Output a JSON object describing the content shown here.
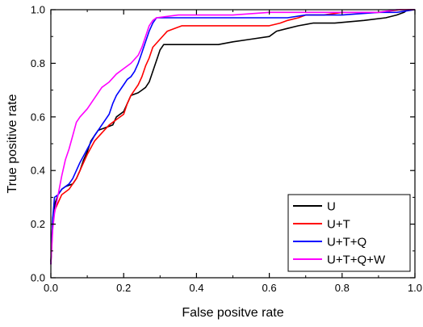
{
  "chart_data": {
    "type": "line",
    "title": "",
    "xlabel": "False positve rate",
    "ylabel": "True positive rate",
    "xlim": [
      0.0,
      1.0
    ],
    "ylim": [
      0.0,
      1.0
    ],
    "xticks": [
      "0.0",
      "0.2",
      "0.4",
      "0.6",
      "0.8",
      "1.0"
    ],
    "yticks": [
      "0.0",
      "0.2",
      "0.4",
      "0.6",
      "0.8",
      "1.0"
    ],
    "grid": false,
    "legend_position": "bottom-right",
    "series": [
      {
        "name": "U",
        "color": "#000000",
        "points": [
          [
            0.0,
            0.06
          ],
          [
            0.005,
            0.22
          ],
          [
            0.012,
            0.28
          ],
          [
            0.02,
            0.31
          ],
          [
            0.03,
            0.33
          ],
          [
            0.04,
            0.34
          ],
          [
            0.06,
            0.35
          ],
          [
            0.07,
            0.37
          ],
          [
            0.08,
            0.4
          ],
          [
            0.09,
            0.44
          ],
          [
            0.1,
            0.47
          ],
          [
            0.11,
            0.51
          ],
          [
            0.12,
            0.53
          ],
          [
            0.13,
            0.55
          ],
          [
            0.15,
            0.56
          ],
          [
            0.17,
            0.57
          ],
          [
            0.18,
            0.6
          ],
          [
            0.2,
            0.62
          ],
          [
            0.21,
            0.65
          ],
          [
            0.22,
            0.68
          ],
          [
            0.24,
            0.69
          ],
          [
            0.25,
            0.7
          ],
          [
            0.26,
            0.71
          ],
          [
            0.27,
            0.73
          ],
          [
            0.28,
            0.77
          ],
          [
            0.29,
            0.81
          ],
          [
            0.3,
            0.85
          ],
          [
            0.31,
            0.87
          ],
          [
            0.34,
            0.87
          ],
          [
            0.36,
            0.87
          ],
          [
            0.42,
            0.87
          ],
          [
            0.46,
            0.87
          ],
          [
            0.5,
            0.88
          ],
          [
            0.55,
            0.89
          ],
          [
            0.6,
            0.9
          ],
          [
            0.62,
            0.92
          ],
          [
            0.65,
            0.93
          ],
          [
            0.68,
            0.94
          ],
          [
            0.72,
            0.95
          ],
          [
            0.78,
            0.95
          ],
          [
            0.86,
            0.96
          ],
          [
            0.92,
            0.97
          ],
          [
            0.95,
            0.98
          ],
          [
            0.97,
            0.99
          ],
          [
            0.98,
            1.0
          ],
          [
            1.0,
            1.0
          ]
        ]
      },
      {
        "name": "U+T",
        "color": "#ff0000",
        "points": [
          [
            0.0,
            0.05
          ],
          [
            0.005,
            0.2
          ],
          [
            0.01,
            0.25
          ],
          [
            0.02,
            0.28
          ],
          [
            0.03,
            0.31
          ],
          [
            0.05,
            0.33
          ],
          [
            0.07,
            0.37
          ],
          [
            0.08,
            0.4
          ],
          [
            0.09,
            0.43
          ],
          [
            0.1,
            0.46
          ],
          [
            0.12,
            0.51
          ],
          [
            0.14,
            0.54
          ],
          [
            0.16,
            0.57
          ],
          [
            0.18,
            0.59
          ],
          [
            0.2,
            0.61
          ],
          [
            0.21,
            0.65
          ],
          [
            0.22,
            0.68
          ],
          [
            0.23,
            0.7
          ],
          [
            0.24,
            0.72
          ],
          [
            0.25,
            0.75
          ],
          [
            0.26,
            0.79
          ],
          [
            0.27,
            0.82
          ],
          [
            0.28,
            0.86
          ],
          [
            0.3,
            0.89
          ],
          [
            0.32,
            0.92
          ],
          [
            0.34,
            0.93
          ],
          [
            0.36,
            0.94
          ],
          [
            0.4,
            0.94
          ],
          [
            0.45,
            0.94
          ],
          [
            0.5,
            0.94
          ],
          [
            0.55,
            0.94
          ],
          [
            0.6,
            0.94
          ],
          [
            0.63,
            0.95
          ],
          [
            0.65,
            0.96
          ],
          [
            0.68,
            0.97
          ],
          [
            0.7,
            0.98
          ],
          [
            0.72,
            0.98
          ],
          [
            0.75,
            0.98
          ],
          [
            0.8,
            0.99
          ],
          [
            0.9,
            0.99
          ],
          [
            0.96,
            1.0
          ],
          [
            1.0,
            1.0
          ]
        ]
      },
      {
        "name": "U+T+Q",
        "color": "#0000ff",
        "points": [
          [
            0.0,
            0.05
          ],
          [
            0.005,
            0.22
          ],
          [
            0.01,
            0.3
          ],
          [
            0.02,
            0.31
          ],
          [
            0.03,
            0.33
          ],
          [
            0.05,
            0.35
          ],
          [
            0.06,
            0.37
          ],
          [
            0.07,
            0.4
          ],
          [
            0.08,
            0.43
          ],
          [
            0.1,
            0.48
          ],
          [
            0.12,
            0.53
          ],
          [
            0.14,
            0.57
          ],
          [
            0.16,
            0.61
          ],
          [
            0.17,
            0.65
          ],
          [
            0.18,
            0.68
          ],
          [
            0.2,
            0.72
          ],
          [
            0.21,
            0.74
          ],
          [
            0.22,
            0.75
          ],
          [
            0.23,
            0.77
          ],
          [
            0.24,
            0.8
          ],
          [
            0.25,
            0.84
          ],
          [
            0.26,
            0.88
          ],
          [
            0.27,
            0.92
          ],
          [
            0.28,
            0.95
          ],
          [
            0.29,
            0.97
          ],
          [
            0.35,
            0.97
          ],
          [
            0.45,
            0.97
          ],
          [
            0.55,
            0.97
          ],
          [
            0.65,
            0.97
          ],
          [
            0.7,
            0.98
          ],
          [
            0.8,
            0.98
          ],
          [
            0.9,
            0.99
          ],
          [
            0.95,
            0.99
          ],
          [
            1.0,
            1.0
          ]
        ]
      },
      {
        "name": "U+T+Q+W",
        "color": "#ff00ff",
        "points": [
          [
            0.0,
            0.05
          ],
          [
            0.005,
            0.18
          ],
          [
            0.01,
            0.24
          ],
          [
            0.02,
            0.31
          ],
          [
            0.03,
            0.38
          ],
          [
            0.04,
            0.44
          ],
          [
            0.05,
            0.48
          ],
          [
            0.06,
            0.53
          ],
          [
            0.07,
            0.58
          ],
          [
            0.08,
            0.6
          ],
          [
            0.1,
            0.63
          ],
          [
            0.12,
            0.67
          ],
          [
            0.14,
            0.71
          ],
          [
            0.16,
            0.73
          ],
          [
            0.18,
            0.76
          ],
          [
            0.2,
            0.78
          ],
          [
            0.22,
            0.8
          ],
          [
            0.24,
            0.83
          ],
          [
            0.25,
            0.86
          ],
          [
            0.26,
            0.9
          ],
          [
            0.27,
            0.94
          ],
          [
            0.28,
            0.96
          ],
          [
            0.29,
            0.97
          ],
          [
            0.35,
            0.98
          ],
          [
            0.4,
            0.98
          ],
          [
            0.5,
            0.98
          ],
          [
            0.6,
            0.99
          ],
          [
            0.7,
            0.99
          ],
          [
            0.8,
            0.99
          ],
          [
            0.9,
            0.99
          ],
          [
            0.95,
            1.0
          ],
          [
            1.0,
            1.0
          ]
        ]
      }
    ]
  }
}
